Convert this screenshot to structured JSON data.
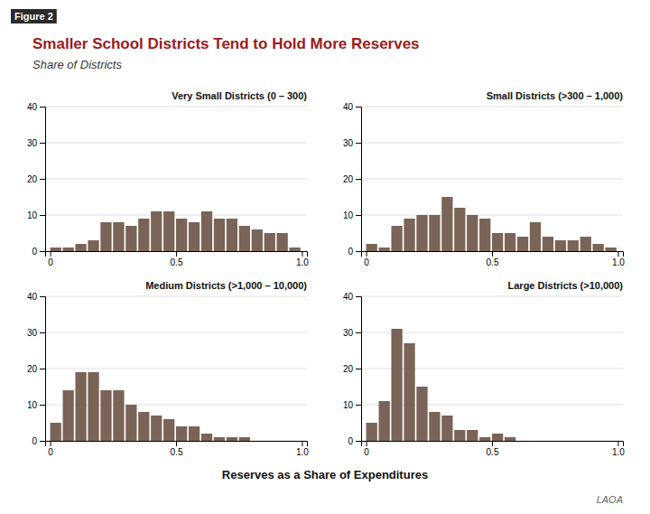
{
  "figure_label": "Figure 2",
  "title": "Smaller School Districts Tend to Hold More Reserves",
  "subtitle": "Share of Districts",
  "xlabel": "Reserves as a Share of Expenditures",
  "annotations": [
    "LAOA"
  ],
  "chart_data": [
    {
      "type": "histogram",
      "title": "Very Small Districts (0 – 300)",
      "bins": [
        0,
        0.05,
        0.1,
        0.15,
        0.2,
        0.25,
        0.3,
        0.35,
        0.4,
        0.45,
        0.5,
        0.55,
        0.6,
        0.65,
        0.7,
        0.75,
        0.8,
        0.85,
        0.9,
        0.95,
        1.0
      ],
      "values": [
        1,
        1,
        2,
        3,
        8,
        8,
        7,
        9,
        11,
        11,
        9,
        8,
        11,
        9,
        9,
        7,
        6,
        5,
        5,
        1
      ],
      "color": "#7a6457",
      "xlim": [
        -0.02,
        1.02
      ],
      "xticks": [
        0,
        0.5,
        {
          "value": 1.0,
          "label": "1.0"
        }
      ],
      "ylim": [
        0,
        40
      ],
      "yticks": [
        0,
        10,
        20,
        30,
        40
      ],
      "grid": true
    },
    {
      "type": "histogram",
      "title": "Small Districts (>300 – 1,000)",
      "bins": [
        0,
        0.05,
        0.1,
        0.15,
        0.2,
        0.25,
        0.3,
        0.35,
        0.4,
        0.45,
        0.5,
        0.55,
        0.6,
        0.65,
        0.7,
        0.75,
        0.8,
        0.85,
        0.9,
        0.95,
        1.0
      ],
      "values": [
        2,
        1,
        7,
        9,
        10,
        10,
        15,
        12,
        10,
        9,
        5,
        5,
        4,
        8,
        4,
        3,
        3,
        4,
        2,
        1
      ],
      "color": "#7a6457",
      "xlim": [
        -0.02,
        1.02
      ],
      "xticks": [
        0,
        0.5,
        {
          "value": 1.0,
          "label": "1.0"
        }
      ],
      "ylim": [
        0,
        40
      ],
      "yticks": [
        0,
        10,
        20,
        30,
        40
      ],
      "grid": true
    },
    {
      "type": "histogram",
      "title": "Medium Districts (>1,000 – 10,000)",
      "bins": [
        0,
        0.05,
        0.1,
        0.15,
        0.2,
        0.25,
        0.3,
        0.35,
        0.4,
        0.45,
        0.5,
        0.55,
        0.6,
        0.65,
        0.7,
        0.75,
        0.8,
        0.85,
        0.9,
        0.95,
        1.0
      ],
      "values": [
        5,
        14,
        19,
        19,
        14,
        14,
        10,
        8,
        7,
        6,
        4,
        4,
        2,
        1,
        1,
        1,
        0,
        0,
        0,
        0
      ],
      "color": "#7a6457",
      "xlim": [
        -0.02,
        1.02
      ],
      "xticks": [
        0,
        0.5,
        {
          "value": 1.0,
          "label": "1.0"
        }
      ],
      "ylim": [
        0,
        40
      ],
      "yticks": [
        0,
        10,
        20,
        30,
        40
      ],
      "grid": true
    },
    {
      "type": "histogram",
      "title": "Large Districts (>10,000)",
      "bins": [
        0,
        0.05,
        0.1,
        0.15,
        0.2,
        0.25,
        0.3,
        0.35,
        0.4,
        0.45,
        0.5,
        0.55,
        0.6,
        0.65,
        0.7,
        0.75,
        0.8,
        0.85,
        0.9,
        0.95,
        1.0
      ],
      "values": [
        5,
        11,
        31,
        27,
        15,
        8,
        7,
        3,
        3,
        1,
        2,
        1,
        0,
        0,
        0,
        0,
        0,
        0,
        0,
        0
      ],
      "color": "#7a6457",
      "xlim": [
        -0.02,
        1.02
      ],
      "xticks": [
        0,
        0.5,
        {
          "value": 1.0,
          "label": "1.0"
        }
      ],
      "ylim": [
        0,
        40
      ],
      "yticks": [
        0,
        10,
        20,
        30,
        40
      ],
      "grid": true
    }
  ]
}
